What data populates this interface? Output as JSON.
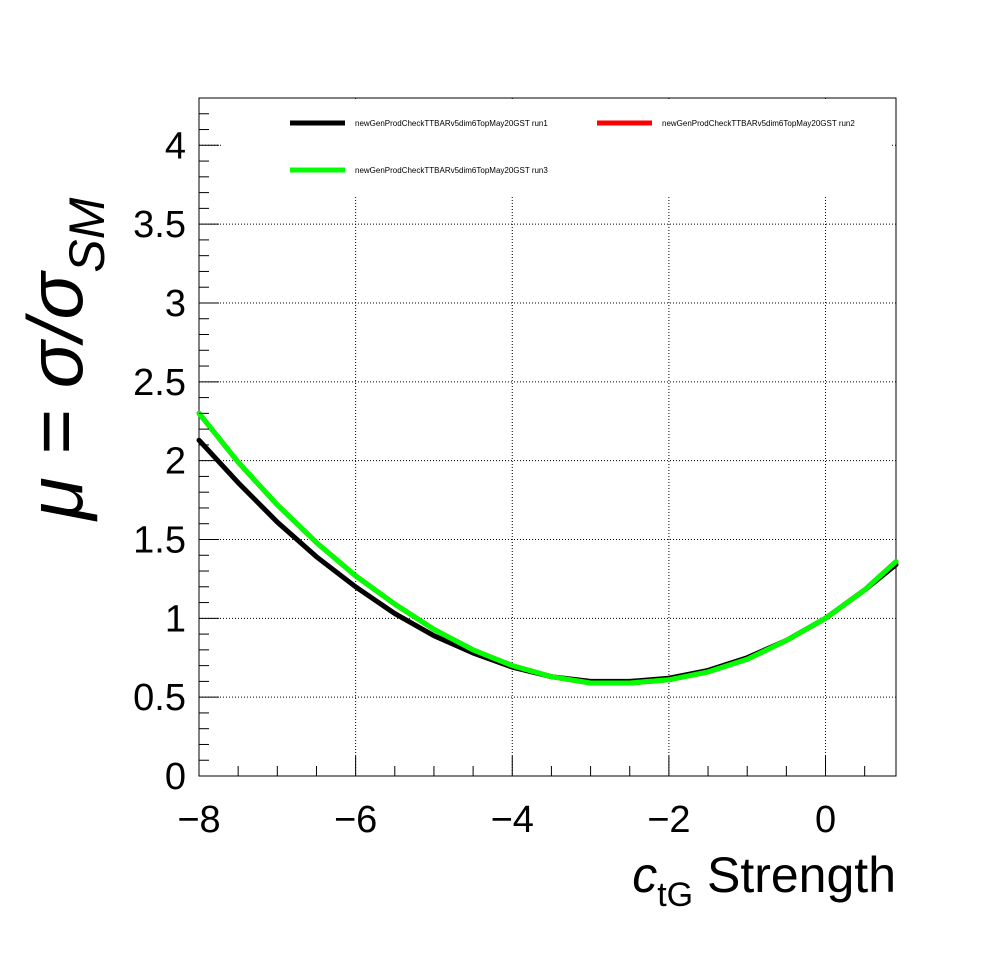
{
  "chart_data": {
    "type": "line",
    "xlabel_symbol": "c",
    "xlabel_subscript": "tG",
    "xlabel_text": " Strength",
    "ylabel_lhs": "μ = σ/σ",
    "ylabel_subscript": "SM",
    "xlim": [
      -8,
      0.9
    ],
    "ylim": [
      0,
      4.3
    ],
    "x_ticks": [
      -8,
      -6,
      -4,
      -2,
      0
    ],
    "x_tick_labels": [
      "−8",
      "−6",
      "−4",
      "−2",
      "0"
    ],
    "y_ticks": [
      0,
      0.5,
      1,
      1.5,
      2,
      2.5,
      3,
      3.5,
      4
    ],
    "y_tick_labels": [
      "0",
      "0.5",
      "1",
      "1.5",
      "2",
      "2.5",
      "3",
      "3.5",
      "4"
    ],
    "grid": true,
    "legend_position": "top",
    "series": [
      {
        "name": "newGenProdCheckTTBARv5dim6TopMay20GST run1",
        "color": "#000000",
        "x": [
          -8,
          -7.5,
          -7,
          -6.5,
          -6,
          -5.5,
          -5,
          -4.5,
          -4,
          -3.5,
          -3,
          -2.5,
          -2,
          -1.5,
          -1,
          -0.5,
          0,
          0.5,
          0.9
        ],
        "y": [
          2.13,
          1.86,
          1.61,
          1.39,
          1.2,
          1.03,
          0.89,
          0.78,
          0.69,
          0.63,
          0.6,
          0.6,
          0.62,
          0.67,
          0.75,
          0.86,
          1.0,
          1.18,
          1.34
        ]
      },
      {
        "name": "newGenProdCheckTTBARv5dim6TopMay20GST run2",
        "color": "#ff0000",
        "x": [
          -8,
          -7.5,
          -7,
          -6.5,
          -6,
          -5.5,
          -5,
          -4.5,
          -4,
          -3.5,
          -3,
          -2.5,
          -2,
          -1.5,
          -1,
          -0.5,
          0,
          0.5,
          0.9
        ],
        "y": [
          2.3,
          1.99,
          1.72,
          1.48,
          1.27,
          1.09,
          0.93,
          0.8,
          0.7,
          0.63,
          0.59,
          0.59,
          0.61,
          0.66,
          0.74,
          0.86,
          1.0,
          1.18,
          1.36
        ]
      },
      {
        "name": "newGenProdCheckTTBARv5dim6TopMay20GST run3",
        "color": "#00ff00",
        "x": [
          -8,
          -7.5,
          -7,
          -6.5,
          -6,
          -5.5,
          -5,
          -4.5,
          -4,
          -3.5,
          -3,
          -2.5,
          -2,
          -1.5,
          -1,
          -0.5,
          0,
          0.5,
          0.9
        ],
        "y": [
          2.3,
          1.99,
          1.72,
          1.48,
          1.27,
          1.09,
          0.93,
          0.8,
          0.7,
          0.63,
          0.59,
          0.59,
          0.61,
          0.66,
          0.74,
          0.86,
          1.0,
          1.18,
          1.36
        ]
      }
    ]
  }
}
